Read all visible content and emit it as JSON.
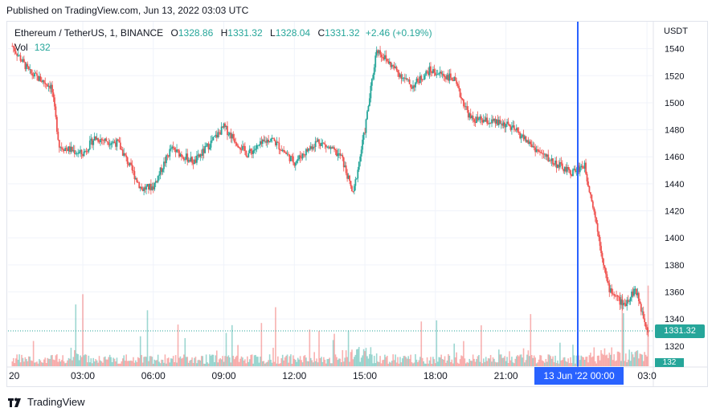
{
  "header": {
    "published": "Published on TradingView.com, Jun 13, 2022 03:03 UTC"
  },
  "legend": {
    "symbol": "Ethereum / TetherUS, 1, BINANCE",
    "open_label": "O",
    "open": "1328.86",
    "high_label": "H",
    "high": "1331.32",
    "low_label": "L",
    "low": "1328.04",
    "close_label": "C",
    "close": "1331.32",
    "change": "+2.46 (+0.19%)",
    "vol_label": "Vol",
    "vol": "132"
  },
  "price_axis": {
    "currency": "USDT",
    "last_price": "1331.32",
    "last_vol": "132"
  },
  "date_marker": "13 Jun '22   00:00",
  "brand": "TradingView",
  "colors": {
    "up": "#26a69a",
    "down": "#ef5350",
    "marker": "#2962ff",
    "grid": "#f0f3fa"
  },
  "chart_data": {
    "type": "candlestick",
    "y_ticks": [
      1320,
      1340,
      1360,
      1380,
      1400,
      1420,
      1440,
      1460,
      1480,
      1500,
      1520,
      1540
    ],
    "ylim": [
      1305,
      1560
    ],
    "x_ticks": [
      "20",
      "03:00",
      "06:00",
      "09:00",
      "12:00",
      "15:00",
      "18:00",
      "21:00",
      "03:0"
    ],
    "marker_label": "13 Jun '22   00:00",
    "price_keypoints": [
      {
        "t": "00:00",
        "p": 1542
      },
      {
        "t": "00:45",
        "p": 1522
      },
      {
        "t": "01:40",
        "p": 1512
      },
      {
        "t": "02:00",
        "p": 1468
      },
      {
        "t": "03:00",
        "p": 1462
      },
      {
        "t": "03:30",
        "p": 1474
      },
      {
        "t": "04:30",
        "p": 1470
      },
      {
        "t": "05:30",
        "p": 1436
      },
      {
        "t": "06:00",
        "p": 1438
      },
      {
        "t": "06:45",
        "p": 1466
      },
      {
        "t": "07:45",
        "p": 1456
      },
      {
        "t": "09:00",
        "p": 1482
      },
      {
        "t": "10:00",
        "p": 1462
      },
      {
        "t": "11:00",
        "p": 1474
      },
      {
        "t": "12:00",
        "p": 1456
      },
      {
        "t": "13:00",
        "p": 1472
      },
      {
        "t": "14:00",
        "p": 1460
      },
      {
        "t": "14:30",
        "p": 1432
      },
      {
        "t": "15:00",
        "p": 1480
      },
      {
        "t": "15:30",
        "p": 1540
      },
      {
        "t": "16:00",
        "p": 1530
      },
      {
        "t": "17:00",
        "p": 1512
      },
      {
        "t": "17:45",
        "p": 1524
      },
      {
        "t": "18:45",
        "p": 1518
      },
      {
        "t": "19:30",
        "p": 1488
      },
      {
        "t": "21:00",
        "p": 1484
      },
      {
        "t": "21:30",
        "p": 1478
      },
      {
        "t": "22:30",
        "p": 1462
      },
      {
        "t": "23:45",
        "p": 1448
      },
      {
        "t": "00:20",
        "p": 1454
      },
      {
        "t": "00:45",
        "p": 1420
      },
      {
        "t": "01:20",
        "p": 1364
      },
      {
        "t": "02:00",
        "p": 1350
      },
      {
        "t": "02:30",
        "p": 1362
      },
      {
        "t": "03:03",
        "p": 1331
      }
    ],
    "last": {
      "open": 1328.86,
      "high": 1331.32,
      "low": 1328.04,
      "close": 1331.32,
      "volume": 132
    }
  }
}
